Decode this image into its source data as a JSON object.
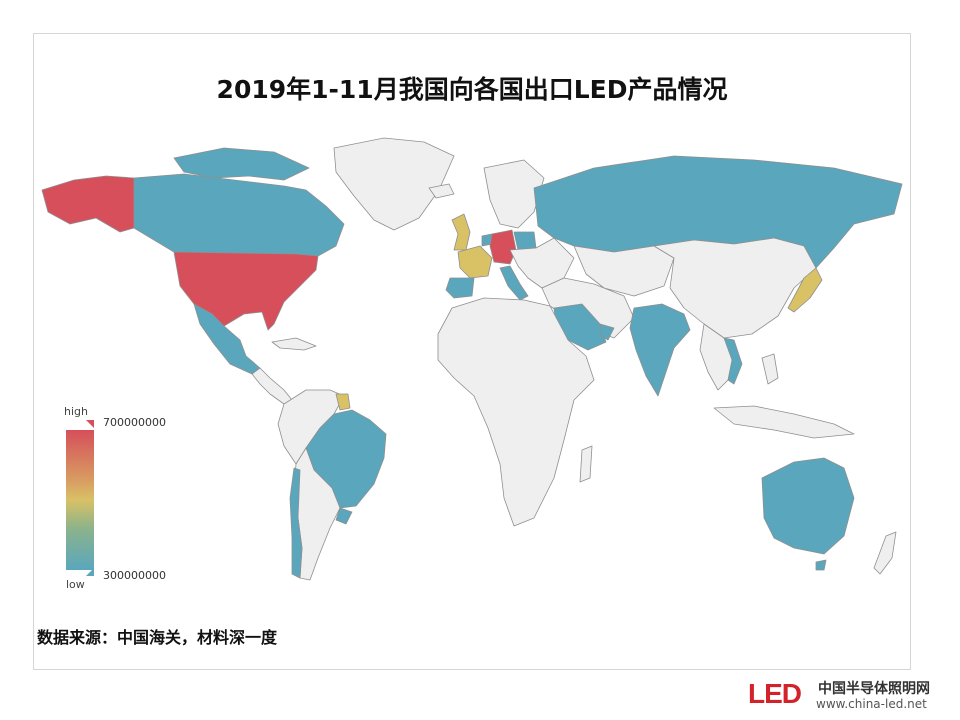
{
  "title": "2019年1-11月我国向各国出口LED产品情况",
  "legend": {
    "high_label": "high",
    "low_label": "low",
    "max_value": "700000000",
    "min_value": "300000000",
    "colors": {
      "high": "#d64f5a",
      "mid": "#d9c166",
      "low": "#5aa7bd",
      "none": "#efefef"
    }
  },
  "source": "数据来源：中国海关，材料深一度",
  "logo": {
    "mark": "LED",
    "name": "中国半导体照明网",
    "url": "www.china-led.net"
  },
  "regions": [
    {
      "name": "USA",
      "level": "high"
    },
    {
      "name": "Alaska",
      "level": "high"
    },
    {
      "name": "Germany",
      "level": "high"
    },
    {
      "name": "Canada",
      "level": "low"
    },
    {
      "name": "Mexico",
      "level": "low"
    },
    {
      "name": "Brazil",
      "level": "low"
    },
    {
      "name": "Chile",
      "level": "low"
    },
    {
      "name": "Uruguay",
      "level": "low"
    },
    {
      "name": "Russia",
      "level": "low"
    },
    {
      "name": "Poland",
      "level": "low"
    },
    {
      "name": "Italy",
      "level": "low"
    },
    {
      "name": "Spain",
      "level": "low"
    },
    {
      "name": "Netherlands",
      "level": "low"
    },
    {
      "name": "Saudi Arabia",
      "level": "low"
    },
    {
      "name": "UAE",
      "level": "low"
    },
    {
      "name": "India",
      "level": "low"
    },
    {
      "name": "Vietnam",
      "level": "low"
    },
    {
      "name": "Australia",
      "level": "low"
    },
    {
      "name": "United Kingdom",
      "level": "mid"
    },
    {
      "name": "France",
      "level": "mid"
    },
    {
      "name": "Japan",
      "level": "mid"
    }
  ]
}
